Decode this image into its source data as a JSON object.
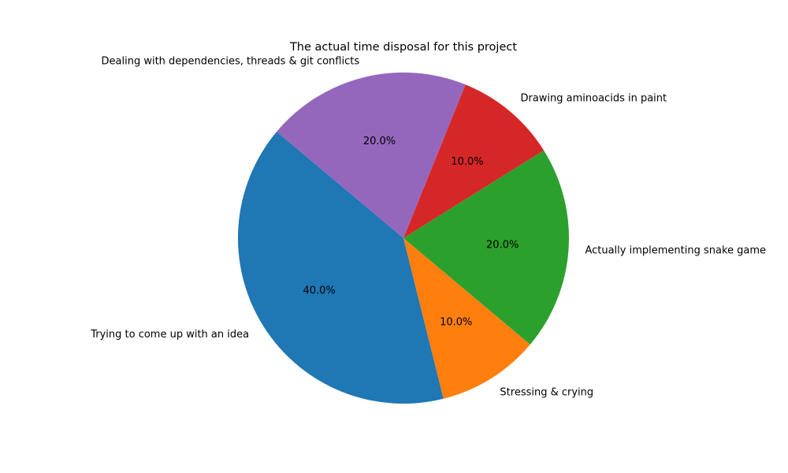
{
  "chart_data": {
    "type": "pie",
    "title": "The actual time disposal for this project",
    "categories": [
      "Trying to come up with an idea",
      "Stressing & crying",
      "Actually implementing snake game",
      "Drawing aminoacids in paint",
      "Dealing with dependencies, threads & git conflicts"
    ],
    "values": [
      40,
      10,
      20,
      10,
      20
    ],
    "percent_labels": [
      "40.0%",
      "10.0%",
      "20.0%",
      "10.0%",
      "20.0%"
    ],
    "colors": [
      "#1f77b4",
      "#ff7f0e",
      "#2ca02c",
      "#d62728",
      "#9467bd"
    ],
    "start_angle_deg": 140,
    "direction": "counterclockwise",
    "legend": "none"
  }
}
